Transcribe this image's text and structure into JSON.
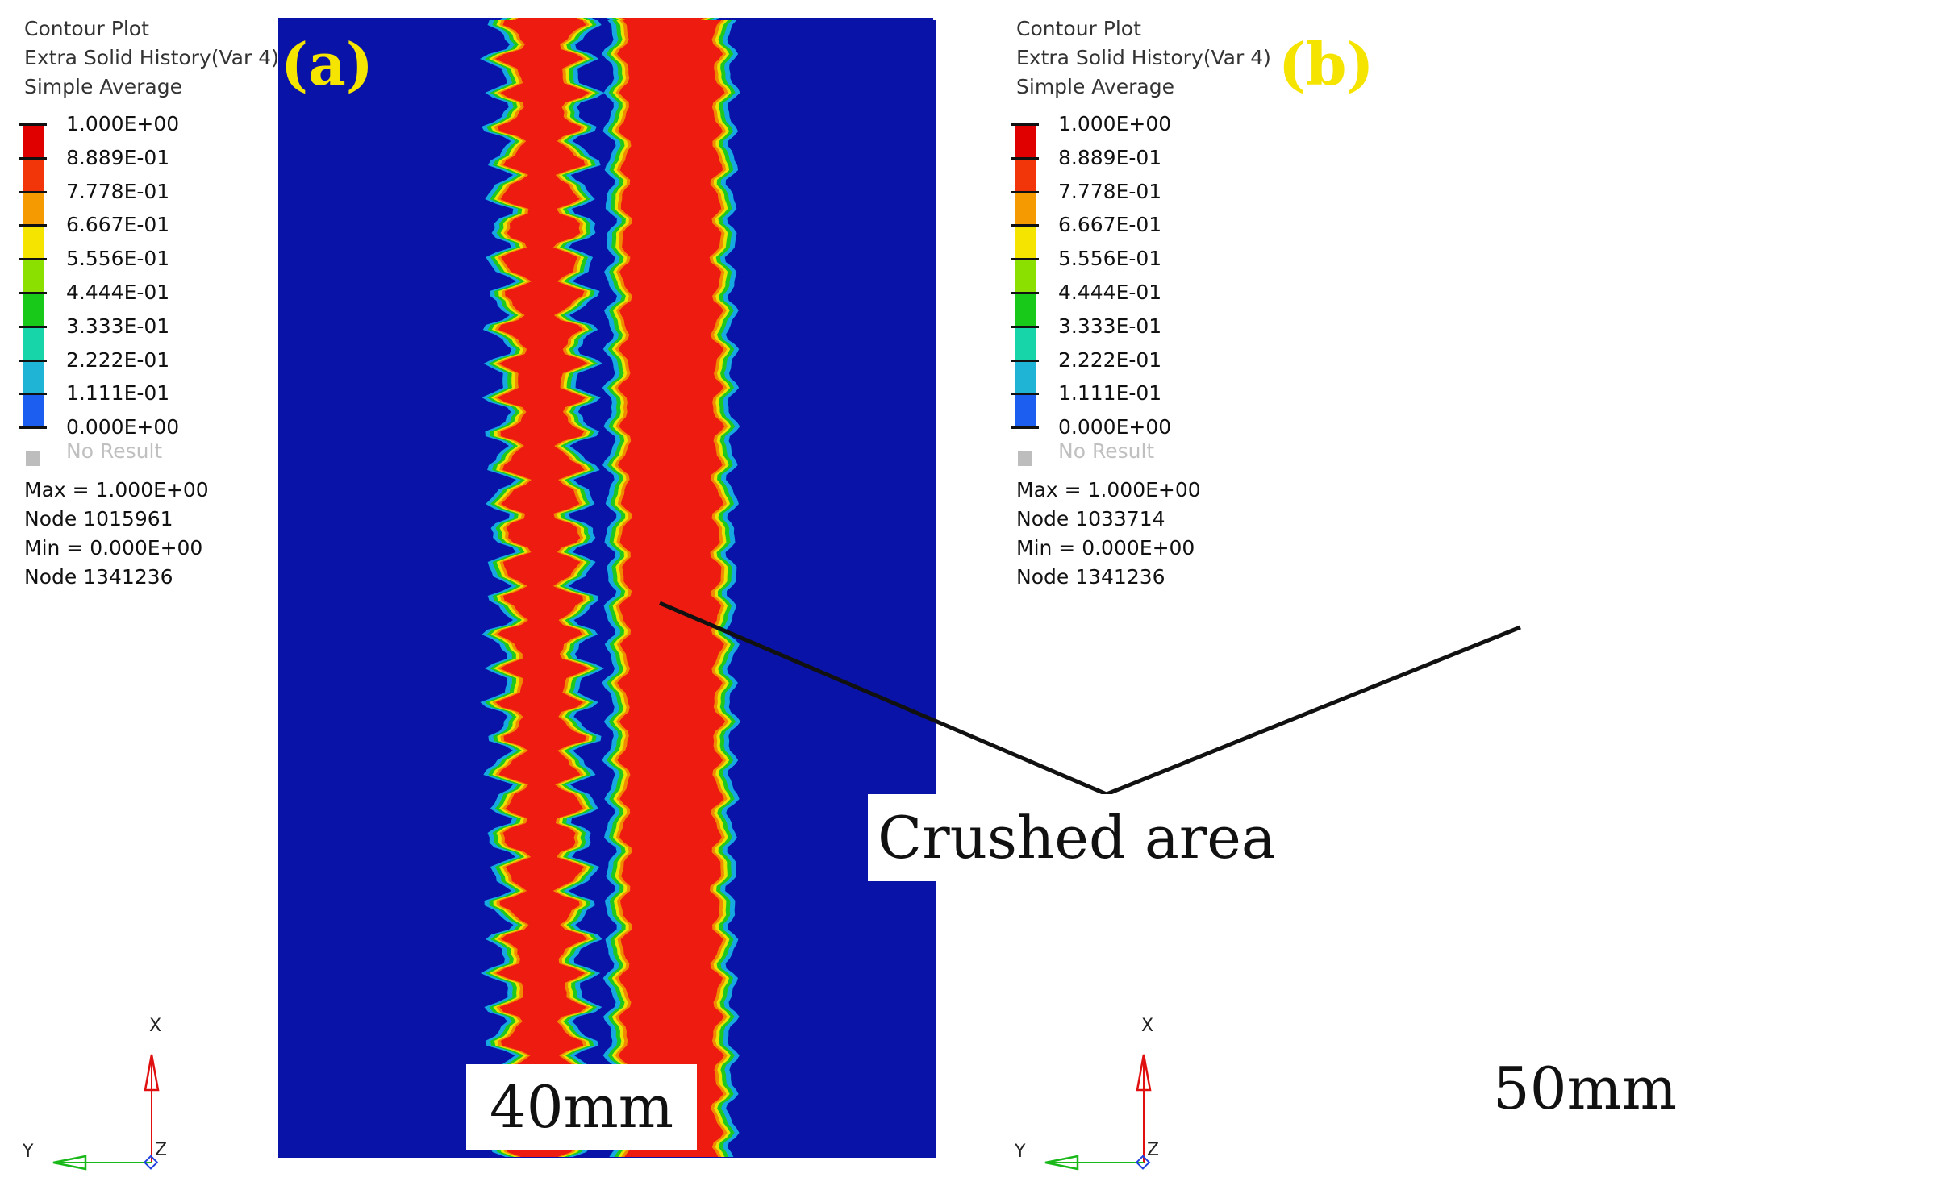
{
  "figure": {
    "legend_colors": [
      "#0000b4",
      "#1c5ef0",
      "#1fb4d6",
      "#17d5a8",
      "#19c919",
      "#8ce000",
      "#f5e400",
      "#f59a00",
      "#f2360a",
      "#e00000"
    ],
    "background_color": "#0a13a8",
    "band_colors": {
      "outer": "#16a8e0",
      "green": "#1ec81e",
      "yellow": "#e8e400",
      "orange": "#f08a00",
      "red": "#ee1c10"
    },
    "panels": [
      {
        "tag": "(a)",
        "header": [
          "Contour Plot",
          "Extra Solid History(Var 4)",
          "Simple Average"
        ],
        "legend_labels": [
          "1.000E+00",
          "8.889E-01",
          "7.778E-01",
          "6.667E-01",
          "5.556E-01",
          "4.444E-01",
          "3.333E-01",
          "2.222E-01",
          "1.111E-01",
          "0.000E+00"
        ],
        "no_result": "No Result",
        "stats": [
          "Max =  1.000E+00",
          "Node 1015961",
          "Min =  0.000E+00",
          "Node 1341236"
        ],
        "axes": {
          "x": "X",
          "y": "Y",
          "z": "Z"
        },
        "width_label": "40mm"
      },
      {
        "tag": "(b)",
        "header": [
          "Contour Plot",
          "Extra Solid History(Var 4)",
          "Simple Average"
        ],
        "legend_labels": [
          "1.000E+00",
          "8.889E-01",
          "7.778E-01",
          "6.667E-01",
          "5.556E-01",
          "4.444E-01",
          "3.333E-01",
          "2.222E-01",
          "1.111E-01",
          "0.000E+00"
        ],
        "no_result": "No Result",
        "stats": [
          "Max =  1.000E+00",
          "Node 1033714",
          "Min =  0.000E+00",
          "Node 1341236"
        ],
        "axes": {
          "x": "X",
          "y": "Y",
          "z": "Z"
        },
        "width_label": "50mm"
      }
    ],
    "annotation": "Crushed area"
  }
}
